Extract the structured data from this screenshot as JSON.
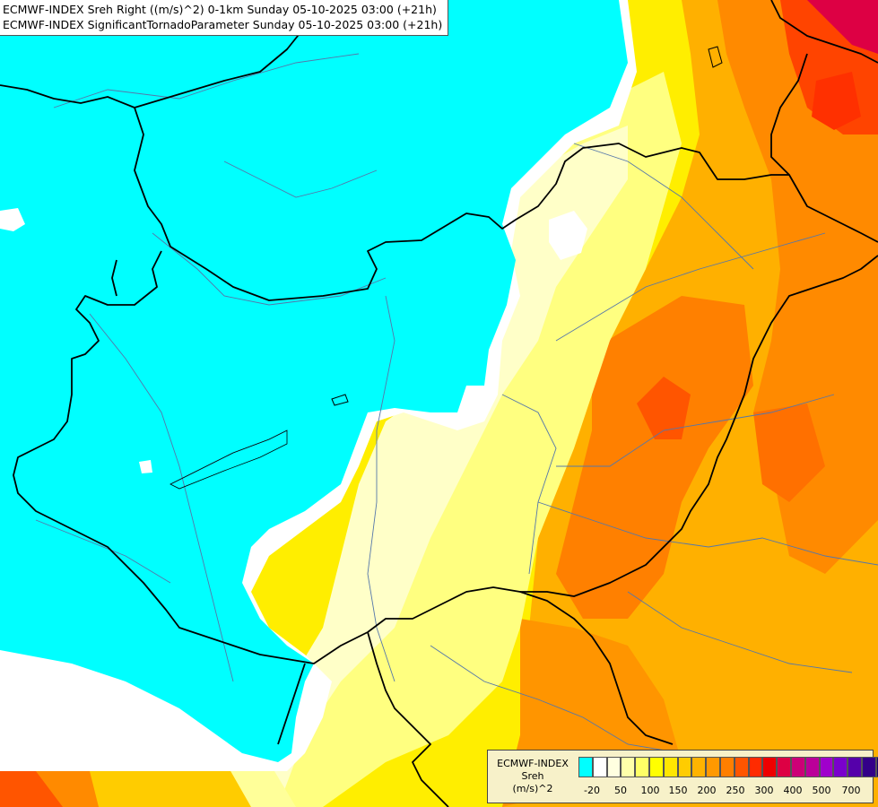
{
  "header": {
    "line1": "ECMWF-INDEX Sreh Right ((m/s)^2) 0-1km Sunday 05-10-2025 03:00 (+21h)",
    "line2": "ECMWF-INDEX SignificantTornadoParameter Sunday 05-10-2025 03:00 (+21h)"
  },
  "map": {
    "background_icon": "forecast-field",
    "colors": {
      "cyan": "#00ffff",
      "white": "#ffffff",
      "pale_yellow": "#ffffc8",
      "light_yellow": "#ffff80",
      "yellow": "#ffee00",
      "amber": "#ffcc00",
      "orange": "#ffaa00",
      "dark_orange": "#ff7a00",
      "red_orange": "#ff4a00",
      "red": "#ee1c25",
      "magenta": "#dd0066",
      "country_border": "#000000",
      "river": "#5577aa"
    }
  },
  "legend": {
    "title_line1": "ECMWF-INDEX",
    "title_line2": "Sreh",
    "title_line3": "(m/s)^2",
    "swatches": [
      "#00ffff",
      "#ffffff",
      "#ffffe0",
      "#ffffaa",
      "#ffff66",
      "#ffff00",
      "#ffe600",
      "#ffcc00",
      "#ffb300",
      "#ff9900",
      "#ff7f00",
      "#ff5500",
      "#ff2b00",
      "#ee0000",
      "#dd0044",
      "#cc0077",
      "#bb0099",
      "#a000cc",
      "#7a00cc",
      "#5500aa",
      "#330088",
      "#1a0066"
    ],
    "ticks": [
      "-20",
      "50",
      "100",
      "150",
      "200",
      "250",
      "300",
      "400",
      "500",
      "700"
    ]
  }
}
